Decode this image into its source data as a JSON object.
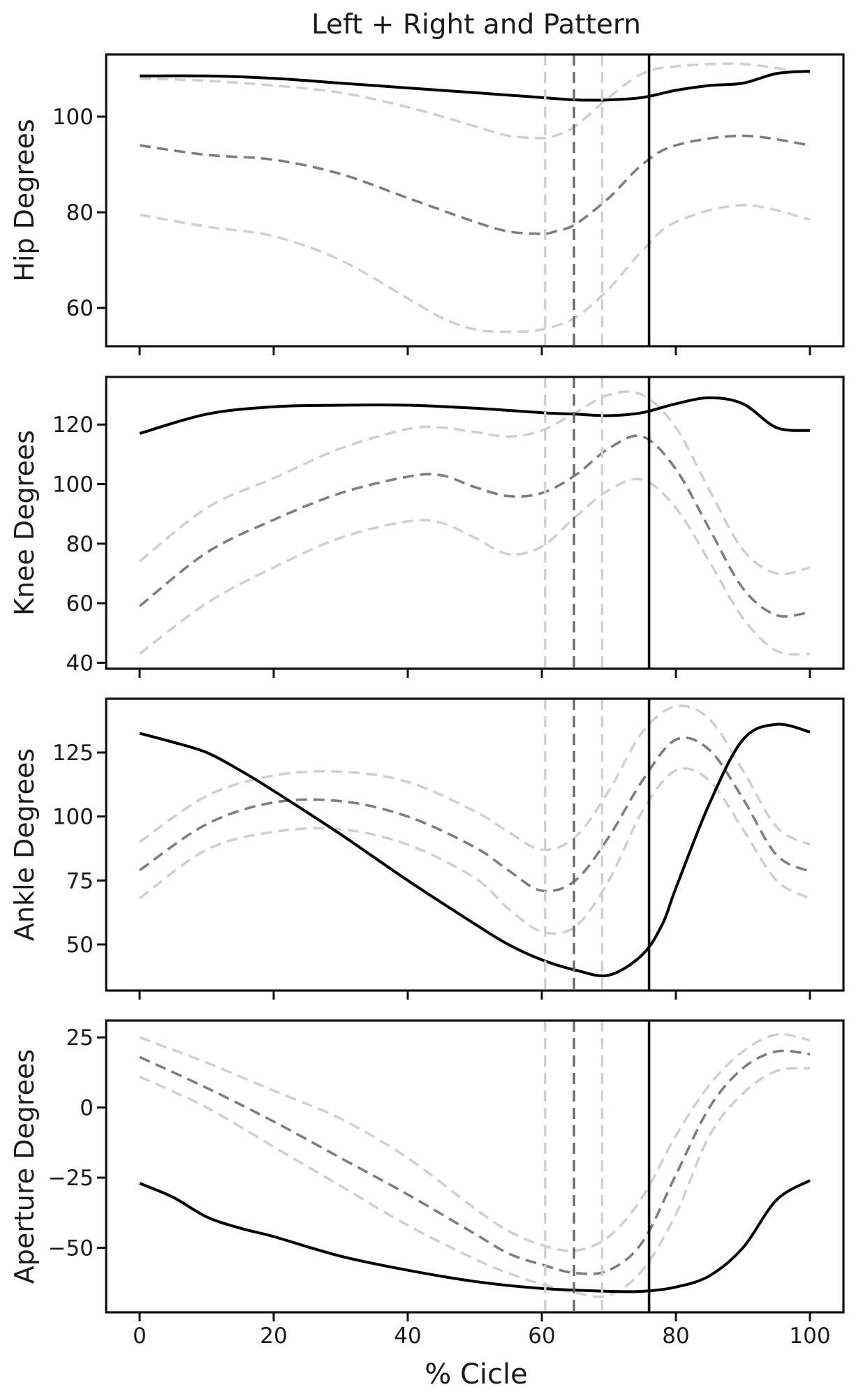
{
  "chart_data": {
    "type": "line",
    "title": "Left + Right and Pattern",
    "xlabel": "% Cicle",
    "xlim": [
      -5,
      105
    ],
    "xticks": [
      0,
      20,
      40,
      60,
      80,
      100
    ],
    "vertical_lines": [
      {
        "name": "pattern-lower-marker",
        "x": 60.5,
        "color": "#d0d0d0",
        "style": "dashed"
      },
      {
        "name": "pattern-mean-marker",
        "x": 64.8,
        "color": "#6a6a6a",
        "style": "dashed"
      },
      {
        "name": "pattern-upper-marker",
        "x": 69.0,
        "color": "#d0d0d0",
        "style": "dashed"
      },
      {
        "name": "subject-marker",
        "x": 76.0,
        "color": "#000000",
        "style": "solid"
      }
    ],
    "panels": [
      {
        "id": "hip",
        "ylabel": "Hip Degrees",
        "ylim": [
          52,
          113
        ],
        "yticks": [
          60,
          80,
          100
        ],
        "ytick_labels": [
          "60",
          "80",
          "100"
        ],
        "series": [
          {
            "name": "pattern-upper",
            "color": "#d0d0d0",
            "style": "dashed",
            "x": [
              0,
              10,
              20,
              30,
              40,
              50,
              55,
              60,
              62,
              65,
              70,
              75,
              80,
              90,
              100
            ],
            "y": [
              108,
              107.5,
              106.5,
              105,
              102,
              98,
              96,
              95.5,
              96,
              98,
              104,
              109,
              110.5,
              111,
              109
            ]
          },
          {
            "name": "pattern-mean",
            "color": "#7e7e7e",
            "style": "dashed",
            "x": [
              0,
              10,
              20,
              30,
              40,
              50,
              55,
              60,
              62,
              65,
              70,
              75,
              80,
              90,
              100
            ],
            "y": [
              94,
              92,
              91,
              88,
              83,
              78,
              76,
              75.5,
              76,
              77.5,
              83,
              90,
              94,
              96,
              94
            ]
          },
          {
            "name": "pattern-lower",
            "color": "#d0d0d0",
            "style": "dashed",
            "x": [
              0,
              10,
              20,
              30,
              40,
              45,
              50,
              55,
              60,
              65,
              70,
              75,
              80,
              90,
              100
            ],
            "y": [
              79.5,
              77,
              75,
              70,
              62,
              58,
              55.5,
              55,
              55.5,
              58,
              64,
              72,
              78,
              81.5,
              78.5
            ]
          },
          {
            "name": "subject",
            "color": "#000000",
            "style": "solid",
            "x": [
              0,
              10,
              20,
              30,
              40,
              50,
              60,
              65,
              70,
              75,
              80,
              85,
              90,
              95,
              100
            ],
            "y": [
              108.5,
              108.5,
              108,
              107,
              106,
              105,
              104,
              103.5,
              103.5,
              104,
              105.5,
              106.5,
              107,
              109,
              109.5
            ]
          }
        ]
      },
      {
        "id": "knee",
        "ylabel": "Knee Degrees",
        "ylim": [
          38,
          136
        ],
        "yticks": [
          40,
          60,
          80,
          100,
          120
        ],
        "ytick_labels": [
          "40",
          "60",
          "80",
          "100",
          "120"
        ],
        "series": [
          {
            "name": "pattern-upper",
            "color": "#d0d0d0",
            "style": "dashed",
            "x": [
              0,
              10,
              20,
              30,
              40,
              45,
              50,
              55,
              60,
              65,
              70,
              75,
              80,
              85,
              90,
              95,
              100
            ],
            "y": [
              74,
              92,
              102,
              112,
              118.5,
              119,
              117.5,
              116,
              118,
              124,
              130,
              130,
              119,
              98,
              78,
              70,
              72
            ]
          },
          {
            "name": "pattern-mean",
            "color": "#7e7e7e",
            "style": "dashed",
            "x": [
              0,
              10,
              20,
              30,
              40,
              45,
              50,
              55,
              60,
              65,
              70,
              75,
              80,
              85,
              90,
              95,
              100
            ],
            "y": [
              59,
              77,
              88,
              97,
              102.5,
              103,
              99,
              96,
              97,
              103,
              112,
              116,
              105,
              85,
              65,
              56,
              57
            ]
          },
          {
            "name": "pattern-lower",
            "color": "#d0d0d0",
            "style": "dashed",
            "x": [
              0,
              10,
              20,
              30,
              40,
              45,
              50,
              55,
              60,
              65,
              70,
              75,
              80,
              85,
              90,
              95,
              100
            ],
            "y": [
              43,
              60,
              72,
              82,
              87.5,
              87,
              82,
              76.5,
              79,
              89,
              98,
              101.5,
              92,
              74,
              55,
              44,
              43
            ]
          },
          {
            "name": "subject",
            "color": "#000000",
            "style": "solid",
            "x": [
              0,
              10,
              20,
              30,
              40,
              50,
              60,
              65,
              70,
              75,
              80,
              85,
              90,
              95,
              100
            ],
            "y": [
              117,
              123.5,
              126,
              126.5,
              126.5,
              125.5,
              124,
              123.5,
              123,
              124,
              127,
              129,
              127,
              119,
              118
            ]
          }
        ]
      },
      {
        "id": "ankle",
        "ylabel": "Ankle Degrees",
        "ylim": [
          32,
          146
        ],
        "yticks": [
          50,
          75,
          100,
          125
        ],
        "ytick_labels": [
          "50",
          "75",
          "100",
          "125"
        ],
        "series": [
          {
            "name": "pattern-upper",
            "color": "#d0d0d0",
            "style": "dashed",
            "x": [
              0,
              10,
              20,
              30,
              40,
              50,
              55,
              60,
              65,
              70,
              75,
              80,
              85,
              90,
              95,
              100
            ],
            "y": [
              90,
              108,
              116,
              117.5,
              113.5,
              102,
              94,
              87,
              92,
              110,
              133,
              143,
              138,
              118,
              96,
              89
            ]
          },
          {
            "name": "pattern-mean",
            "color": "#7e7e7e",
            "style": "dashed",
            "x": [
              0,
              10,
              20,
              30,
              40,
              50,
              55,
              60,
              65,
              70,
              75,
              80,
              85,
              90,
              95,
              100
            ],
            "y": [
              79,
              97,
              105.5,
              106,
              100,
              88,
              79,
              71,
              75,
              92,
              114,
              130,
              126,
              107,
              85,
              78.5
            ]
          },
          {
            "name": "pattern-lower",
            "color": "#d0d0d0",
            "style": "dashed",
            "x": [
              0,
              10,
              20,
              30,
              40,
              50,
              55,
              60,
              65,
              70,
              75,
              80,
              85,
              90,
              95,
              100
            ],
            "y": [
              68,
              87,
              94,
              95,
              89,
              76,
              64,
              55,
              57,
              75,
              102,
              118,
              114,
              95,
              75,
              68
            ]
          },
          {
            "name": "subject",
            "color": "#000000",
            "style": "solid",
            "x": [
              0,
              5,
              10,
              15,
              20,
              30,
              40,
              50,
              55,
              60,
              65,
              70,
              75,
              78,
              80,
              85,
              90,
              95,
              100
            ],
            "y": [
              132.5,
              129,
              125,
              118,
              110,
              93,
              75,
              58,
              50,
              44,
              40,
              38,
              46,
              58,
              72,
              105,
              130,
              136,
              133
            ]
          }
        ]
      },
      {
        "id": "aperture",
        "ylabel": "Aperture Degrees",
        "ylim": [
          -73,
          31
        ],
        "yticks": [
          -50,
          -25,
          0,
          25
        ],
        "ytick_labels": [
          "−50",
          "−25",
          "0",
          "25"
        ],
        "series": [
          {
            "name": "pattern-upper",
            "color": "#d0d0d0",
            "style": "dashed",
            "x": [
              0,
              10,
              20,
              30,
              40,
              50,
              55,
              60,
              65,
              70,
              75,
              80,
              85,
              90,
              95,
              100
            ],
            "y": [
              25,
              16,
              6,
              -4,
              -18,
              -36,
              -44,
              -49,
              -51,
              -46,
              -32,
              -10,
              8,
              20,
              26,
              24
            ]
          },
          {
            "name": "pattern-mean",
            "color": "#7e7e7e",
            "style": "dashed",
            "x": [
              0,
              10,
              20,
              30,
              40,
              50,
              55,
              60,
              65,
              70,
              75,
              80,
              85,
              90,
              95,
              100
            ],
            "y": [
              18,
              7,
              -5,
              -18,
              -31,
              -45,
              -52,
              -56,
              -59,
              -58,
              -48,
              -24,
              0,
              14,
              20,
              19
            ]
          },
          {
            "name": "pattern-lower",
            "color": "#d0d0d0",
            "style": "dashed",
            "x": [
              0,
              10,
              20,
              30,
              40,
              50,
              55,
              60,
              65,
              70,
              75,
              80,
              85,
              90,
              95,
              100
            ],
            "y": [
              11,
              0,
              -14,
              -28,
              -42,
              -54,
              -59,
              -63,
              -66,
              -67,
              -58,
              -38,
              -10,
              5,
              13,
              14
            ]
          },
          {
            "name": "subject",
            "color": "#000000",
            "style": "solid",
            "x": [
              0,
              5,
              10,
              15,
              20,
              30,
              40,
              50,
              60,
              70,
              75,
              80,
              85,
              90,
              95,
              100
            ],
            "y": [
              -27,
              -32,
              -39,
              -43,
              -46,
              -53,
              -58,
              -62,
              -64.5,
              -65.5,
              -65.5,
              -64,
              -60,
              -50,
              -33,
              -26
            ]
          }
        ]
      }
    ]
  }
}
